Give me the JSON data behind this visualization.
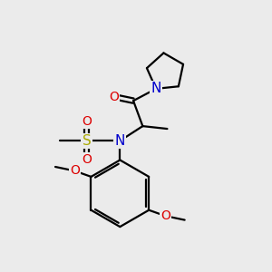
{
  "bg_color": "#ebebeb",
  "bond_color": "#000000",
  "bond_width": 1.6,
  "atom_colors": {
    "N": "#0000cc",
    "O": "#dd0000",
    "S": "#aaaa00"
  },
  "font_size": 10,
  "fig_size": [
    3.0,
    3.0
  ],
  "dpi": 100
}
